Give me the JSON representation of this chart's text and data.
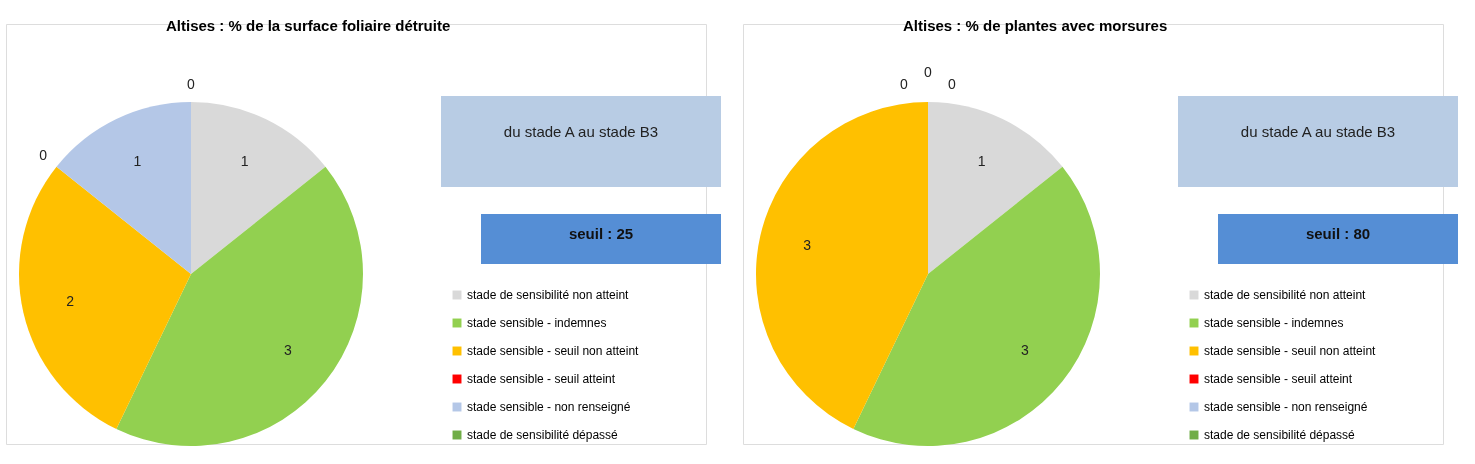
{
  "chart_data": [
    {
      "type": "pie",
      "title": "Altises : % de la surface foliaire détruite",
      "categories": [
        "stade de sensibilité non atteint",
        "stade sensible - indemnes",
        "stade sensible - seuil non atteint",
        "stade sensible - seuil atteint",
        "stade sensible - non renseigné",
        "stade de sensibilité dépassé"
      ],
      "values": [
        1,
        3,
        2,
        0,
        1,
        0
      ],
      "value_labels": [
        "1",
        "3",
        "2",
        "0",
        "1",
        "0"
      ],
      "colors": [
        "#d9d9d9",
        "#92d050",
        "#ffc000",
        "#ff0000",
        "#b4c7e7",
        "#70ad47"
      ],
      "legend": "right",
      "annotations": [
        "du stade A au stade B3",
        "seuil : 25"
      ]
    },
    {
      "type": "pie",
      "title": "Altises : % de plantes avec morsures",
      "categories": [
        "stade de sensibilité non atteint",
        "stade sensible - indemnes",
        "stade sensible - seuil non atteint",
        "stade sensible - seuil atteint",
        "stade sensible - non renseigné",
        "stade de sensibilité dépassé"
      ],
      "values": [
        1,
        3,
        3,
        0,
        0,
        0
      ],
      "value_labels": [
        "1",
        "3",
        "3",
        "0",
        "0",
        "0"
      ],
      "colors": [
        "#d9d9d9",
        "#92d050",
        "#ffc000",
        "#ff0000",
        "#b4c7e7",
        "#70ad47"
      ],
      "legend": "right",
      "annotations": [
        "du stade A au stade B3",
        "seuil : 80"
      ]
    }
  ]
}
